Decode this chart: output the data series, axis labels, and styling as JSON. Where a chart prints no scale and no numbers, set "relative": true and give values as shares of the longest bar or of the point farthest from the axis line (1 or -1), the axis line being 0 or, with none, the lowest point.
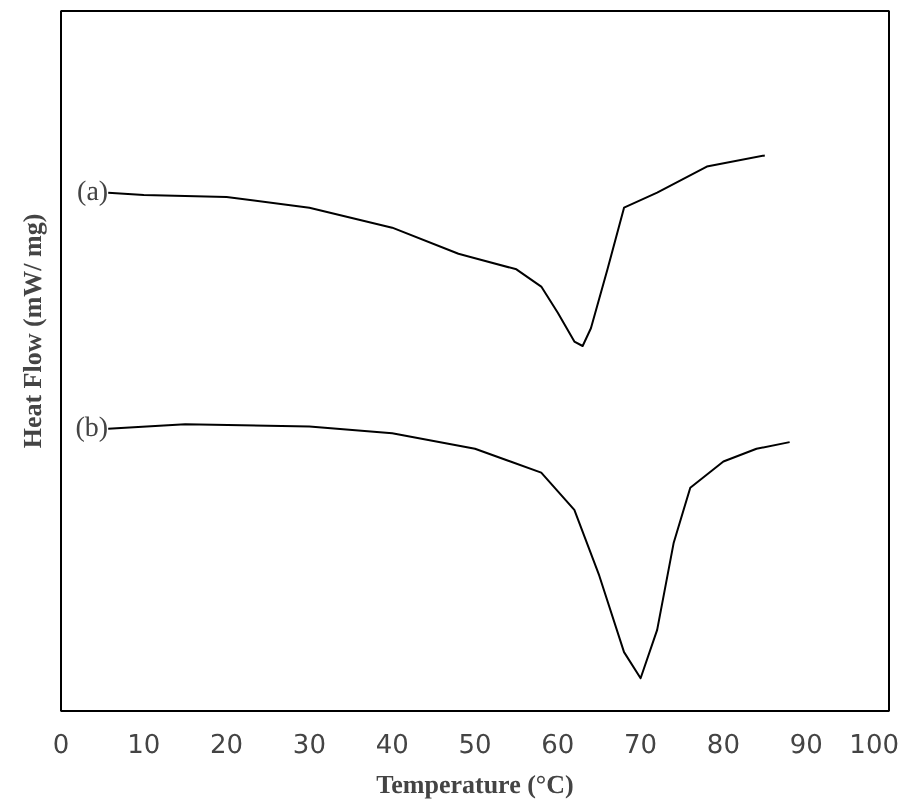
{
  "chart_data": {
    "type": "line",
    "relative": true,
    "xlabel": "Temperature (°C)",
    "ylabel": "Heat Flow (mW/ mg)",
    "xlim": [
      0,
      100
    ],
    "xticks": [
      0,
      10,
      20,
      30,
      40,
      50,
      60,
      70,
      80,
      90,
      100
    ],
    "tick_labels": "x",
    "grid": false,
    "marker": "none",
    "line_style": "solid",
    "annotations": [
      "(a)",
      "(b)"
    ],
    "series": [
      {
        "color": "#000000",
        "x": [
          5.7,
          10,
          20,
          30,
          40,
          48,
          55,
          58,
          60,
          62,
          63,
          64,
          66,
          68,
          72,
          78,
          85
        ],
        "values": [
          0.933,
          0.929,
          0.925,
          0.906,
          0.87,
          0.823,
          0.795,
          0.764,
          0.717,
          0.665,
          0.657,
          0.689,
          0.795,
          0.906,
          0.933,
          0.98,
          1.0
        ]
      },
      {
        "color": "#000000",
        "x": [
          5.7,
          15,
          30,
          40,
          50,
          58,
          62,
          65,
          68,
          70,
          72,
          74,
          76,
          80,
          84,
          88
        ],
        "values": [
          0.508,
          0.516,
          0.512,
          0.5,
          0.472,
          0.429,
          0.362,
          0.244,
          0.106,
          0.059,
          0.146,
          0.303,
          0.402,
          0.449,
          0.472,
          0.484
        ]
      }
    ]
  }
}
